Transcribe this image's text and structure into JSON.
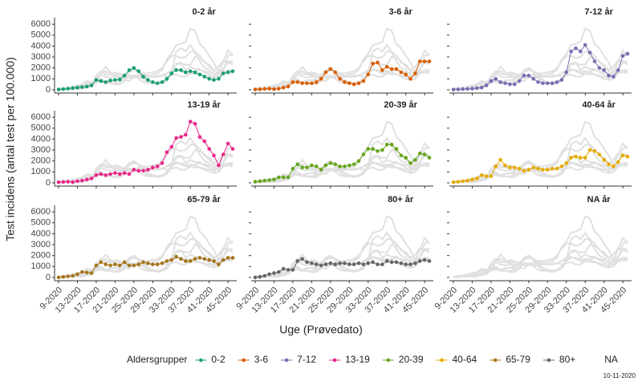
{
  "chart_data": {
    "type": "line",
    "x_label": "Uge (Prøvedato)",
    "y_label": "Test incidens (antal test per 100.000)",
    "legend_title": "Aldersgrupper",
    "caption": "10-11-2020",
    "panels": [
      "0-2 år",
      "3-6 år",
      "7-12 år",
      "13-19 år",
      "20-39 år",
      "40-64 år",
      "65-79 år",
      "80+ år",
      "NA år"
    ],
    "background_color": "#e0e0e0",
    "categories": [
      "9-2020",
      null,
      null,
      null,
      "13-2020",
      null,
      null,
      null,
      "17-2020",
      null,
      null,
      null,
      "21-2020",
      null,
      null,
      null,
      "25-2020",
      null,
      null,
      null,
      "29-2020",
      null,
      null,
      null,
      "33-2020",
      null,
      null,
      null,
      "37-2020",
      null,
      null,
      null,
      "41-2020",
      null,
      null,
      null,
      "45-2020",
      null
    ],
    "ylim": [
      -300,
      6600
    ],
    "yticks": [
      0,
      1000,
      2000,
      3000,
      4000,
      5000,
      6000
    ],
    "series": [
      {
        "name": "0-2",
        "color": "#1b9e77",
        "values": [
          30,
          60,
          100,
          150,
          200,
          250,
          300,
          400,
          900,
          800,
          700,
          850,
          900,
          950,
          1300,
          1800,
          2000,
          1700,
          1200,
          900,
          700,
          600,
          700,
          1000,
          1500,
          1800,
          1800,
          1600,
          1700,
          1600,
          1400,
          1200,
          1000,
          900,
          1000,
          1500,
          1600,
          1700
        ]
      },
      {
        "name": "3-6",
        "color": "#d95f02",
        "values": [
          30,
          50,
          80,
          100,
          60,
          100,
          200,
          300,
          700,
          700,
          600,
          600,
          600,
          700,
          1000,
          1600,
          1900,
          1600,
          1000,
          700,
          600,
          500,
          600,
          800,
          1400,
          2400,
          2500,
          1800,
          2100,
          1900,
          1900,
          1600,
          1400,
          1000,
          1500,
          2600,
          2600,
          2600
        ]
      },
      {
        "name": "7-12",
        "color": "#7570b3",
        "values": [
          20,
          40,
          60,
          80,
          100,
          150,
          200,
          400,
          800,
          1000,
          700,
          600,
          500,
          500,
          800,
          1300,
          1300,
          1000,
          700,
          600,
          600,
          600,
          700,
          900,
          1600,
          3500,
          3800,
          3500,
          4100,
          3400,
          2600,
          2000,
          1800,
          1300,
          1200,
          1800,
          3100,
          3300
        ]
      },
      {
        "name": "13-19",
        "color": "#e7298a",
        "values": [
          50,
          80,
          100,
          60,
          150,
          200,
          300,
          400,
          700,
          800,
          700,
          800,
          900,
          800,
          900,
          800,
          1200,
          1100,
          1100,
          1200,
          1400,
          1500,
          1800,
          2800,
          3300,
          4100,
          4200,
          4400,
          5600,
          5400,
          4200,
          3800,
          3100,
          2500,
          1600,
          2600,
          3600,
          3100
        ]
      },
      {
        "name": "20-39",
        "color": "#66a61e",
        "values": [
          100,
          150,
          200,
          250,
          300,
          500,
          500,
          500,
          1300,
          1700,
          1400,
          1400,
          1600,
          1500,
          1200,
          1600,
          1800,
          1700,
          1500,
          1500,
          1600,
          1700,
          2000,
          2600,
          3100,
          3100,
          2900,
          3000,
          3500,
          3500,
          3100,
          2500,
          2300,
          1800,
          2100,
          2700,
          2600,
          2300
        ]
      },
      {
        "name": "40-64",
        "color": "#e6ab02",
        "values": [
          50,
          100,
          150,
          200,
          300,
          400,
          700,
          600,
          600,
          1500,
          2100,
          1600,
          1400,
          1400,
          1300,
          1100,
          1200,
          1400,
          1300,
          1200,
          1200,
          1300,
          1300,
          1500,
          1800,
          2300,
          2400,
          2300,
          2300,
          3000,
          2900,
          2600,
          2100,
          1700,
          1500,
          1900,
          2500,
          2400
        ]
      },
      {
        "name": "65-79",
        "color": "#a6761d",
        "values": [
          0,
          50,
          100,
          150,
          300,
          500,
          450,
          400,
          1100,
          1400,
          1200,
          1100,
          1200,
          1100,
          1400,
          1100,
          1100,
          1200,
          1400,
          1300,
          1200,
          1200,
          1300,
          1500,
          1600,
          1900,
          1700,
          1500,
          1500,
          1700,
          1800,
          1700,
          1600,
          1500,
          1200,
          1600,
          1800,
          1800
        ]
      },
      {
        "name": "80+",
        "color": "#666666",
        "values": [
          0,
          50,
          150,
          300,
          400,
          500,
          800,
          700,
          700,
          1500,
          1700,
          1400,
          1300,
          1200,
          1100,
          1200,
          1300,
          1200,
          1300,
          1300,
          1200,
          1200,
          1300,
          1200,
          1300,
          1400,
          1200,
          1200,
          1500,
          1400,
          1400,
          1300,
          1200,
          1200,
          1300,
          1500,
          1600,
          1500
        ]
      },
      {
        "name": "NA",
        "color": null,
        "values": [
          null,
          null,
          null,
          null,
          null,
          null,
          null,
          null,
          null,
          null,
          null,
          null,
          null,
          null,
          null,
          null,
          null,
          null,
          null,
          null,
          null,
          null,
          null,
          null,
          null,
          null,
          null,
          null,
          null,
          null,
          null,
          null,
          null,
          null,
          null,
          null,
          null,
          null
        ]
      }
    ]
  }
}
